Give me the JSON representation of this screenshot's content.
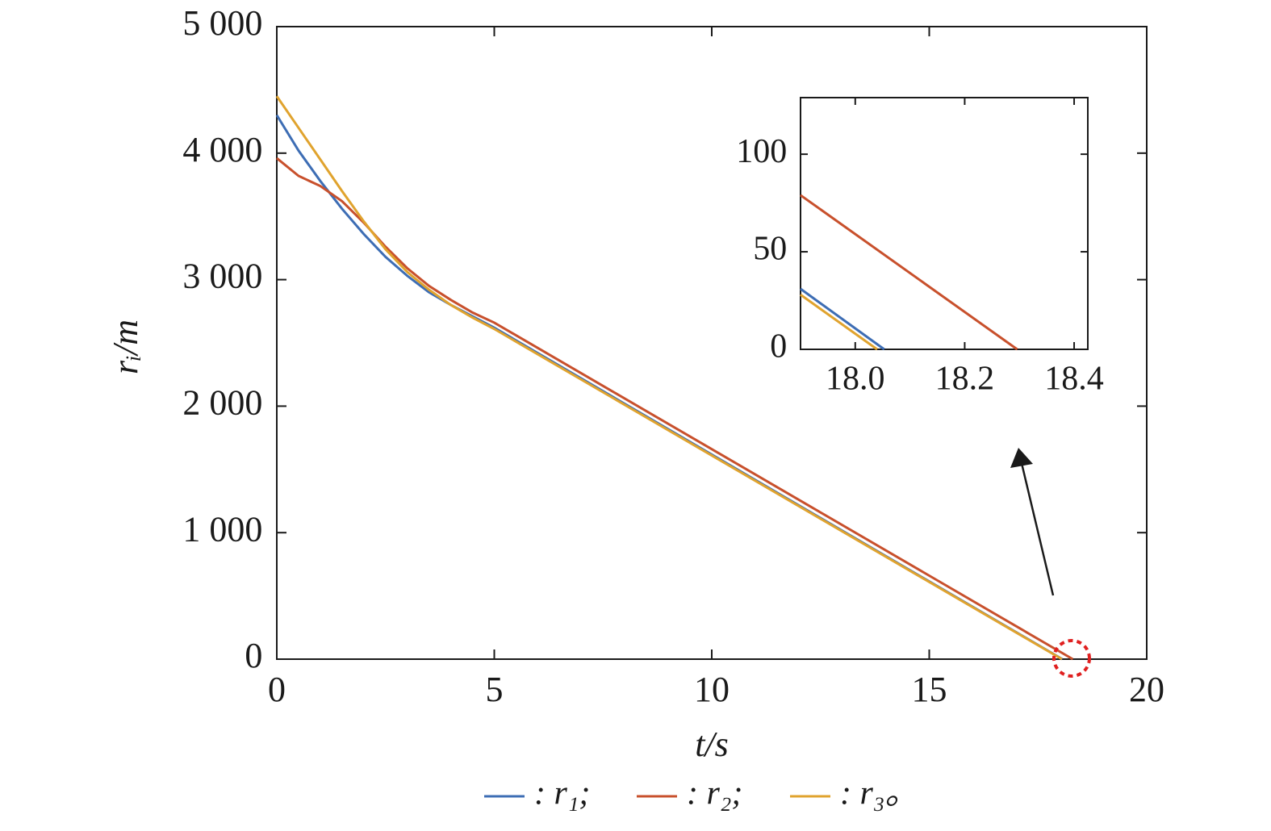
{
  "chart_data": [
    {
      "type": "line",
      "x_label": "t/s",
      "y_label": "rᵢ/m",
      "xlim": [
        0,
        20
      ],
      "xticks": [
        0,
        5,
        10,
        15,
        20
      ],
      "ylim": [
        0,
        5000
      ],
      "yticks": [
        0,
        {
          "value": 1000,
          "label": "1 000"
        },
        {
          "value": 2000,
          "label": "2 000"
        },
        {
          "value": 3000,
          "label": "3 000"
        },
        {
          "value": 4000,
          "label": "4 000"
        },
        {
          "value": 5000,
          "label": "5 000"
        }
      ],
      "legend": "bottom",
      "series": [
        {
          "name": ": r₁;",
          "color": "#3d6db4",
          "x": [
            0,
            0.5,
            1,
            1.5,
            2,
            2.5,
            3,
            3.5,
            4,
            4.5,
            5,
            10,
            15,
            18.06
          ],
          "values": [
            4300,
            4020,
            3780,
            3560,
            3360,
            3180,
            3030,
            2900,
            2800,
            2710,
            2620,
            1617,
            614,
            0
          ]
        },
        {
          "name": ": r₂;",
          "color": "#c8502c",
          "x": [
            0,
            0.5,
            1,
            1.5,
            2,
            2.5,
            3,
            3.5,
            4,
            4.5,
            5,
            10,
            15,
            18.3
          ],
          "values": [
            3960,
            3820,
            3740,
            3620,
            3450,
            3260,
            3090,
            2950,
            2840,
            2740,
            2660,
            1660,
            660,
            0
          ]
        },
        {
          "name": ": r₃。",
          "color": "#e0a32e",
          "x": [
            0,
            0.5,
            1,
            1.5,
            2,
            2.5,
            3,
            3.5,
            4,
            4.5,
            5,
            10,
            15,
            18.05
          ],
          "values": [
            4450,
            4200,
            3950,
            3700,
            3460,
            3240,
            3060,
            2920,
            2800,
            2700,
            2610,
            1610,
            610,
            0
          ]
        }
      ]
    },
    {
      "type": "line",
      "xlim": [
        17.9,
        18.425
      ],
      "xticks": [
        {
          "value": 18,
          "label": "18.0"
        },
        18.2,
        18.4
      ],
      "ylim": [
        0,
        129
      ],
      "yticks": [
        0,
        50,
        100
      ],
      "series": [
        {
          "color": "#3d6db4",
          "x": [
            17.9,
            18.053
          ],
          "values": [
            31,
            0
          ]
        },
        {
          "color": "#c8502c",
          "x": [
            17.9,
            18.296
          ],
          "values": [
            79,
            0
          ]
        },
        {
          "color": "#e0a32e",
          "x": [
            17.9,
            18.04
          ],
          "values": [
            28,
            0
          ]
        }
      ]
    }
  ]
}
